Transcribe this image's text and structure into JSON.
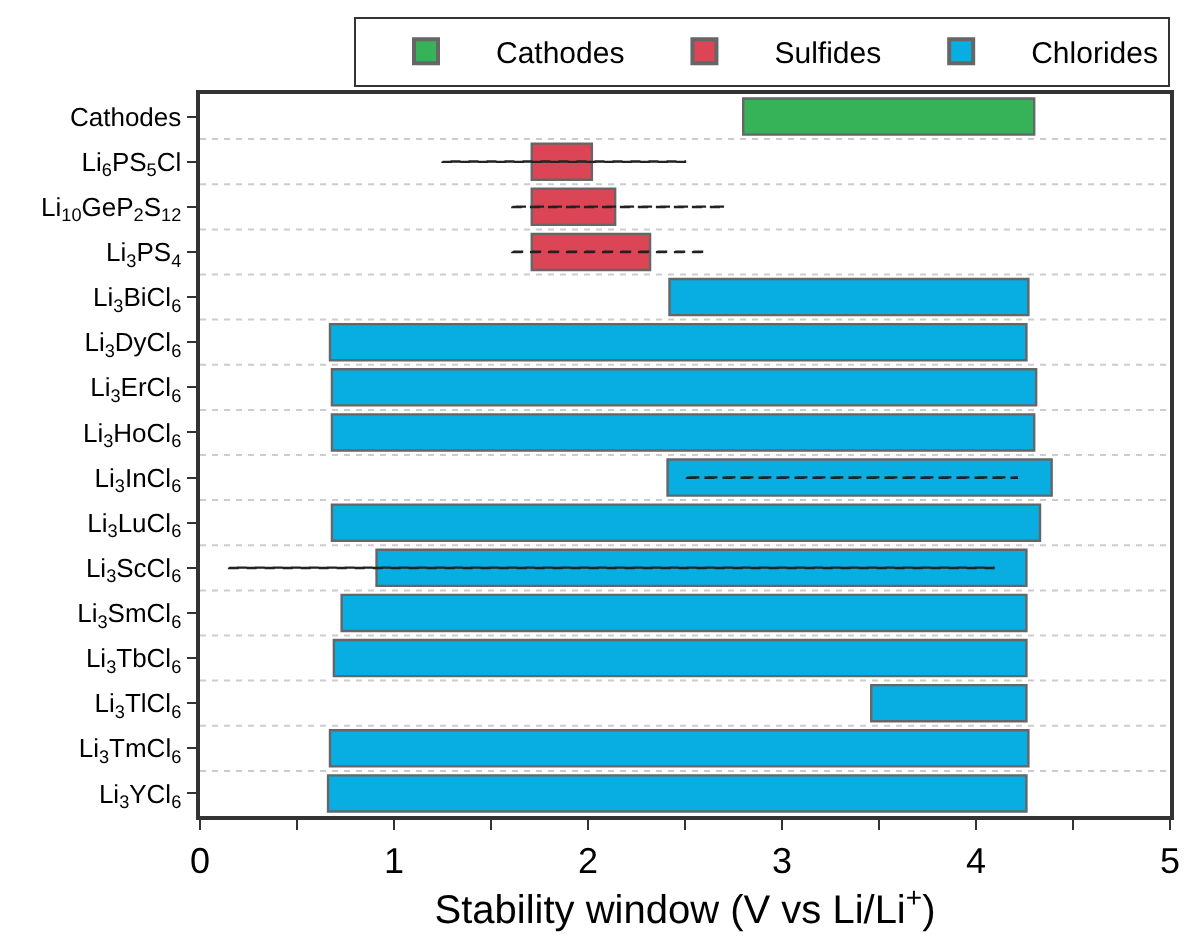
{
  "chart_data": {
    "type": "bar",
    "orientation": "horizontal",
    "xlabel": "Stability window (V vs Li/Li$^{+}$)",
    "categories": [
      "Cathodes",
      "Li$_{6}$PS$_{5}$Cl",
      "Li$_{10}$GeP$_{2}$S$_{12}$",
      "Li$_{3}$PS$_{4}$",
      "Li$_{3}$BiCl$_{6}$",
      "Li$_{3}$DyCl$_{6}$",
      "Li$_{3}$ErCl$_{6}$",
      "Li$_{3}$HoCl$_{6}$",
      "Li$_{3}$InCl$_{6}$",
      "Li$_{3}$LuCl$_{6}$",
      "Li$_{3}$ScCl$_{6}$",
      "Li$_{3}$SmCl$_{6}$",
      "Li$_{3}$TbCl$_{6}$",
      "Li$_{3}$TlCl$_{6}$",
      "Li$_{3}$TmCl$_{6}$",
      "Li$_{3}$YCl$_{6}$"
    ],
    "series": [
      {
        "name": "Cathodes",
        "color": "#36b359",
        "base": [
          2.8,
          null,
          null,
          null,
          null,
          null,
          null,
          null,
          null,
          null,
          null,
          null,
          null,
          null,
          null,
          null
        ],
        "values": [
          1.5,
          null,
          null,
          null,
          null,
          null,
          null,
          null,
          null,
          null,
          null,
          null,
          null,
          null,
          null,
          null
        ]
      },
      {
        "name": "Sulfides",
        "color": "#dc4556",
        "base": [
          null,
          1.71,
          1.71,
          1.71,
          null,
          null,
          null,
          null,
          null,
          null,
          null,
          null,
          null,
          null,
          null,
          null
        ],
        "values": [
          null,
          0.31,
          0.43,
          0.61,
          null,
          null,
          null,
          null,
          null,
          null,
          null,
          null,
          null,
          null,
          null,
          null
        ]
      },
      {
        "name": "Chlorides",
        "color": "#08aee2",
        "base": [
          null,
          null,
          null,
          null,
          2.42,
          0.67,
          0.68,
          0.68,
          2.41,
          0.68,
          0.91,
          0.73,
          0.69,
          3.46,
          0.67,
          0.66
        ],
        "values": [
          null,
          null,
          null,
          null,
          1.85,
          3.59,
          3.63,
          3.62,
          1.98,
          3.65,
          3.35,
          3.53,
          3.57,
          0.8,
          3.6,
          3.6
        ]
      },
      {
        "line_style": "dashed",
        "color": "#222222",
        "base": [
          null,
          1.25,
          1.61,
          1.61,
          null,
          null,
          null,
          null,
          2.51,
          null,
          0.15,
          null,
          null,
          null,
          null,
          null
        ],
        "values": [
          null,
          1.25,
          1.1,
          1.0,
          null,
          null,
          null,
          null,
          1.7,
          null,
          3.94,
          null,
          null,
          null,
          null,
          null
        ]
      }
    ],
    "xlim": [
      0,
      5
    ],
    "xticks": [
      0,
      {
        "value": 0.5,
        "label": null
      },
      1,
      {
        "value": 1.5,
        "label": null
      },
      2,
      {
        "value": 2.5,
        "label": null
      },
      3,
      {
        "value": 3.5,
        "label": null
      },
      4,
      {
        "value": 4.5,
        "label": null
      },
      5
    ],
    "grid": "y",
    "legend": "top"
  }
}
